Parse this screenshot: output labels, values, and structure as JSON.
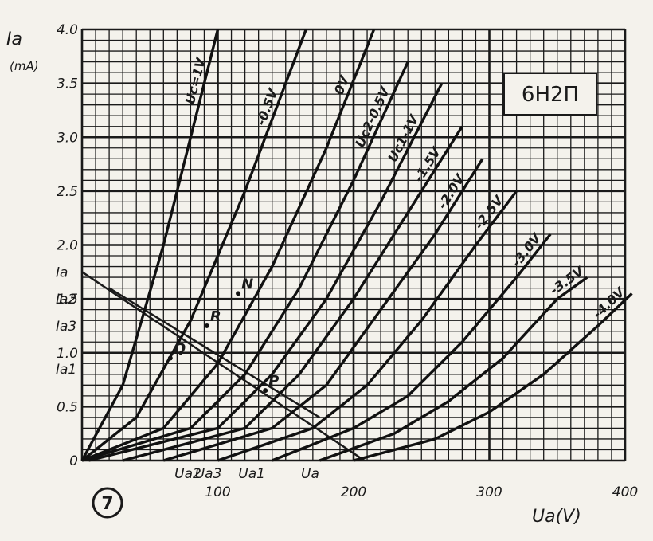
{
  "chart_data": {
    "type": "line",
    "title": "6H2П",
    "xlabel": "Ua(V)",
    "ylabel": "Ia",
    "ylabel_unit": "(mA)",
    "xlim": [
      0,
      400
    ],
    "ylim": [
      0,
      4.0
    ],
    "x_ticks": [
      "100",
      "200",
      "300",
      "400"
    ],
    "y_ticks": [
      "0",
      "0.5",
      "1.0",
      "1.5",
      "2.0",
      "2.5",
      "3.0",
      "3.5",
      "4.0"
    ],
    "x_markers": [
      "Ua2",
      "Ua3",
      "Ua1",
      "Ua"
    ],
    "y_markers": [
      "Ia",
      "Ia2",
      "Ia3",
      "Ia1"
    ],
    "grid": true,
    "series": [
      {
        "name": "Uc=1V",
        "x": [
          0,
          30,
          60,
          80,
          100
        ],
        "y": [
          0,
          0.7,
          2.0,
          3.0,
          4.0
        ]
      },
      {
        "name": "-0.5V",
        "x": [
          0,
          40,
          80,
          120,
          165
        ],
        "y": [
          0,
          0.4,
          1.3,
          2.5,
          4.0
        ]
      },
      {
        "name": "0V",
        "x": [
          0,
          60,
          100,
          140,
          180,
          215
        ],
        "y": [
          0,
          0.3,
          0.9,
          1.8,
          2.9,
          4.0
        ]
      },
      {
        "name": "Uc2-0.5V",
        "x": [
          0,
          80,
          120,
          160,
          200,
          240
        ],
        "y": [
          0,
          0.3,
          0.8,
          1.6,
          2.6,
          3.7
        ]
      },
      {
        "name": "Uc1-1V",
        "x": [
          5,
          100,
          140,
          180,
          220,
          265
        ],
        "y": [
          0,
          0.3,
          0.8,
          1.5,
          2.4,
          3.5
        ]
      },
      {
        "name": "-1.5V",
        "x": [
          30,
          120,
          160,
          200,
          240,
          280
        ],
        "y": [
          0,
          0.3,
          0.8,
          1.5,
          2.3,
          3.1
        ]
      },
      {
        "name": "-2.0V",
        "x": [
          60,
          140,
          180,
          220,
          260,
          295
        ],
        "y": [
          0,
          0.3,
          0.7,
          1.4,
          2.1,
          2.8
        ]
      },
      {
        "name": "-2.5V",
        "x": [
          100,
          170,
          210,
          250,
          290,
          320
        ],
        "y": [
          0,
          0.3,
          0.7,
          1.3,
          2.0,
          2.5
        ]
      },
      {
        "name": "-3.0V",
        "x": [
          140,
          200,
          240,
          280,
          320,
          345
        ],
        "y": [
          0,
          0.3,
          0.6,
          1.1,
          1.7,
          2.1
        ]
      },
      {
        "name": "-3.5V",
        "x": [
          175,
          230,
          270,
          310,
          350,
          372
        ],
        "y": [
          0,
          0.25,
          0.55,
          0.95,
          1.5,
          1.7
        ]
      },
      {
        "name": "-4.0V",
        "x": [
          200,
          260,
          300,
          340,
          380,
          405
        ],
        "y": [
          0,
          0.2,
          0.45,
          0.8,
          1.25,
          1.55
        ]
      }
    ],
    "load_lines": [
      {
        "x": [
          0,
          208
        ],
        "y": [
          1.75,
          0
        ]
      },
      {
        "x": [
          20,
          175
        ],
        "y": [
          1.6,
          0.4
        ]
      }
    ],
    "points": [
      {
        "label": "N",
        "x": 115,
        "y": 1.55
      },
      {
        "label": "R",
        "x": 92,
        "y": 1.25
      },
      {
        "label": "Q",
        "x": 65,
        "y": 0.95
      },
      {
        "label": "P",
        "x": 135,
        "y": 0.65
      }
    ],
    "figure_number": "7"
  }
}
